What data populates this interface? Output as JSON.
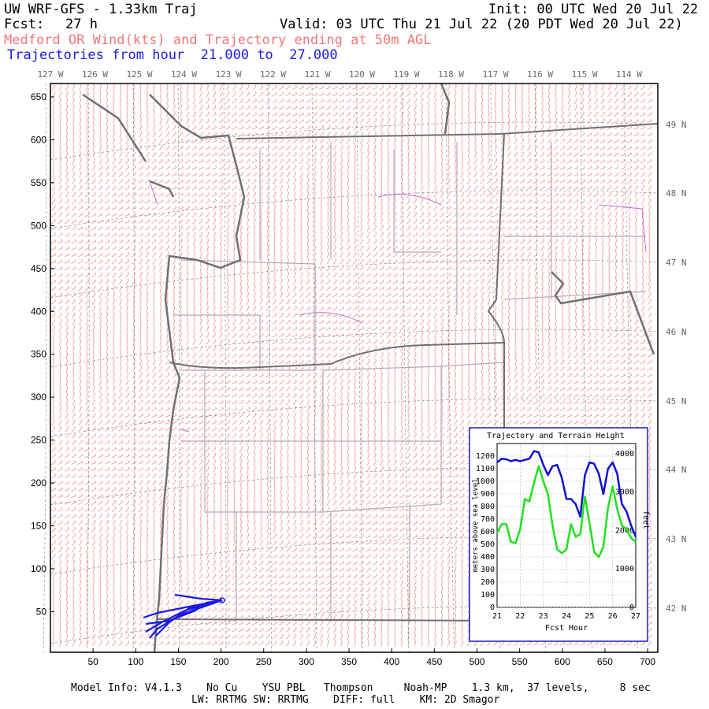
{
  "header": {
    "title": "UW WRF-GFS - 1.33km Traj",
    "init": "Init: 00 UTC Wed 20 Jul 22",
    "fcst_label": "Fcst:",
    "fcst_value": "27 h",
    "valid": "Valid: 03 UTC Thu 21 Jul 22 (20 PDT Wed 20 Jul 22)",
    "subtitle": "Medford OR Wind(kts) and Trajectory ending at 50m AGL",
    "traj_range": "Trajectories from hour  21.000 to  27.000"
  },
  "map": {
    "lon_labels": [
      "127 W",
      "126 W",
      "125 W",
      "124 W",
      "123 W",
      "122 W",
      "121 W",
      "120 W",
      "119 W",
      "118 W",
      "117 W",
      "116 W",
      "115 W",
      "114 W"
    ],
    "lat_labels": [
      "49 N",
      "48 N",
      "47 N",
      "46 N",
      "45 N",
      "44 N",
      "43 N",
      "42 N"
    ],
    "y_ticks": [
      "650",
      "600",
      "550",
      "500",
      "450",
      "400",
      "350",
      "300",
      "250",
      "200",
      "150",
      "100",
      "50"
    ],
    "x_ticks": [
      "50",
      "100",
      "150",
      "200",
      "250",
      "300",
      "350",
      "400",
      "450",
      "500",
      "550",
      "600",
      "650",
      "700"
    ],
    "colors": {
      "wind_barbs": "#f08080",
      "coastline": "#707070",
      "county": "#b8a8b0",
      "rivers": "#c070d0",
      "trajectory": "#1a1ae6"
    }
  },
  "inset": {
    "title": "Trajectory and Terrain Height",
    "ylabel_left": "meters above sea level",
    "ylabel_right": "feet",
    "xlabel": "Fcst Hour",
    "left_ticks": [
      "1200",
      "1100",
      "1000",
      "900",
      "800",
      "700",
      "600",
      "500",
      "400",
      "300",
      "200",
      "100",
      "0"
    ],
    "right_ticks": [
      "4000",
      "3000",
      "2000",
      "1000",
      "0"
    ],
    "x_ticks": [
      "21",
      "22",
      "23",
      "24",
      "25",
      "26",
      "27"
    ],
    "colors": {
      "trajectory": "#1010d0",
      "terrain": "#20e020"
    }
  },
  "chart_data": {
    "type": "line",
    "title": "Trajectory and Terrain Height",
    "xlabel": "Fcst Hour",
    "ylabel": "meters above sea level",
    "xlim": [
      21,
      27
    ],
    "ylim": [
      0,
      1300
    ],
    "series": [
      {
        "x": [
          21.0,
          21.2,
          21.4,
          21.6,
          21.8,
          22.0,
          22.2,
          22.4,
          22.6,
          22.8,
          23.0,
          23.2,
          23.4,
          23.6,
          23.8,
          24.0,
          24.2,
          24.4,
          24.6,
          24.8,
          25.0,
          25.2,
          25.4,
          25.6,
          25.8,
          26.0,
          26.2,
          26.4,
          26.6,
          26.8,
          27.0
        ],
        "values": [
          1150,
          1180,
          1175,
          1160,
          1170,
          1160,
          1170,
          1180,
          1240,
          1230,
          1130,
          1050,
          1120,
          1130,
          1030,
          860,
          860,
          820,
          720,
          1050,
          1150,
          1140,
          1060,
          900,
          1100,
          1150,
          1060,
          820,
          760,
          650,
          560
        ]
      },
      {
        "x": [
          21.0,
          21.2,
          21.4,
          21.6,
          21.8,
          22.0,
          22.2,
          22.4,
          22.6,
          22.8,
          23.0,
          23.2,
          23.4,
          23.6,
          23.8,
          24.0,
          24.2,
          24.4,
          24.6,
          24.8,
          25.0,
          25.2,
          25.4,
          25.6,
          25.8,
          26.0,
          26.2,
          26.4,
          26.6,
          26.8,
          27.0
        ],
        "values": [
          590,
          660,
          660,
          520,
          510,
          620,
          860,
          840,
          990,
          1120,
          1000,
          900,
          650,
          460,
          430,
          460,
          660,
          560,
          580,
          880,
          670,
          440,
          400,
          480,
          790,
          960,
          780,
          650,
          620,
          550,
          520
        ]
      }
    ]
  },
  "footer": {
    "line1": "Model Info: V4.1.3    No Cu    YSU PBL   Thompson     Noah-MP    1.3 km,  37 levels,     8 sec",
    "line2": "LW: RRTMG SW: RRTMG    DIFF: full    KM: 2D Smagor"
  }
}
